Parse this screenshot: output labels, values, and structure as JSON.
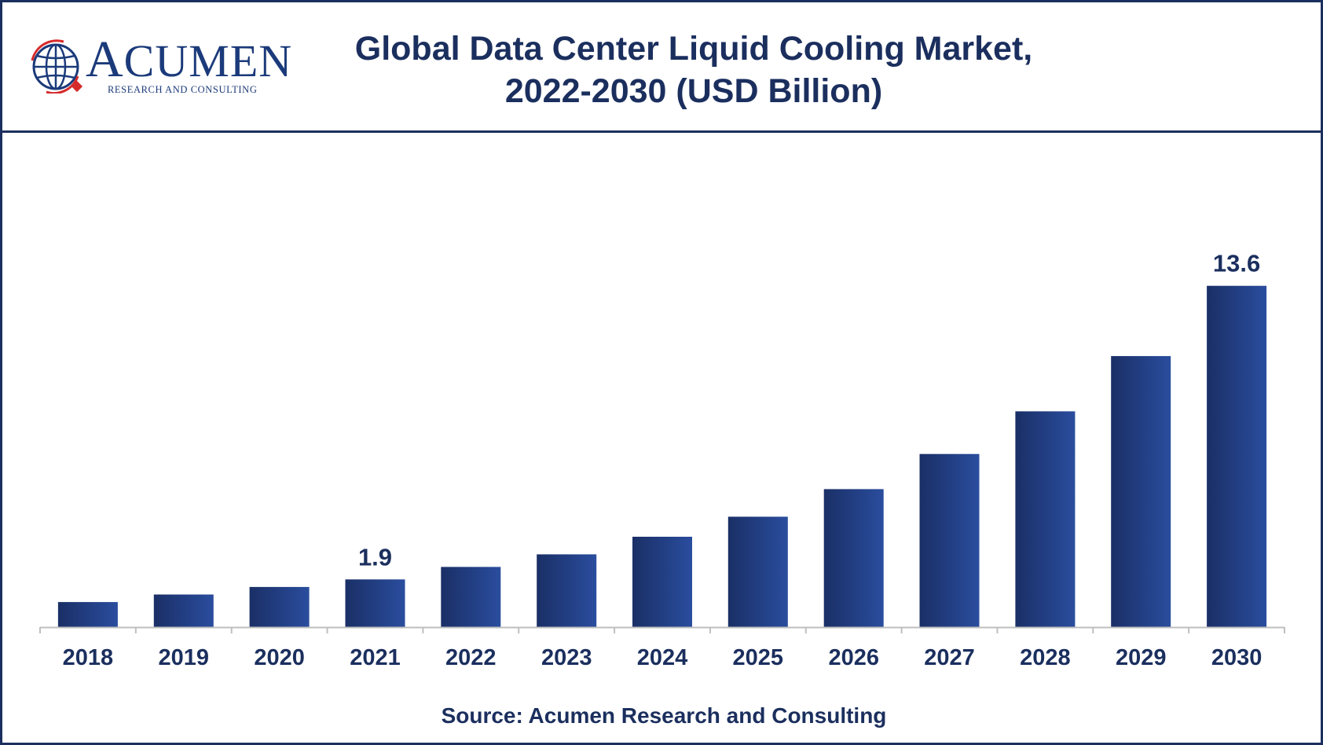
{
  "brand": {
    "name": "ACUMEN",
    "tagline": "RESEARCH AND CONSULTING"
  },
  "header": {
    "title_line1": "Global Data Center Liquid Cooling Market,",
    "title_line2": "2022-2030 (USD Billion)"
  },
  "footer": {
    "source": "Source: Acumen Research and Consulting"
  },
  "colors": {
    "bar_dark": "#1a2f66",
    "bar_light": "#2a4d9e",
    "text": "#1b2f5e",
    "axis": "#bfbfbf"
  },
  "chart_data": {
    "type": "bar",
    "title": "Global Data Center Liquid Cooling Market, 2022-2030 (USD Billion)",
    "xlabel": "",
    "ylabel": "",
    "categories": [
      "2018",
      "2019",
      "2020",
      "2021",
      "2022",
      "2023",
      "2024",
      "2025",
      "2026",
      "2027",
      "2028",
      "2029",
      "2030"
    ],
    "values": [
      1.0,
      1.3,
      1.6,
      1.9,
      2.4,
      2.9,
      3.6,
      4.4,
      5.5,
      6.9,
      8.6,
      10.8,
      13.6
    ],
    "data_labels": [
      {
        "index": 3,
        "text": "1.9"
      },
      {
        "index": 12,
        "text": "13.6"
      }
    ],
    "ylim": [
      0,
      15
    ],
    "grid": false,
    "legend": "none"
  }
}
